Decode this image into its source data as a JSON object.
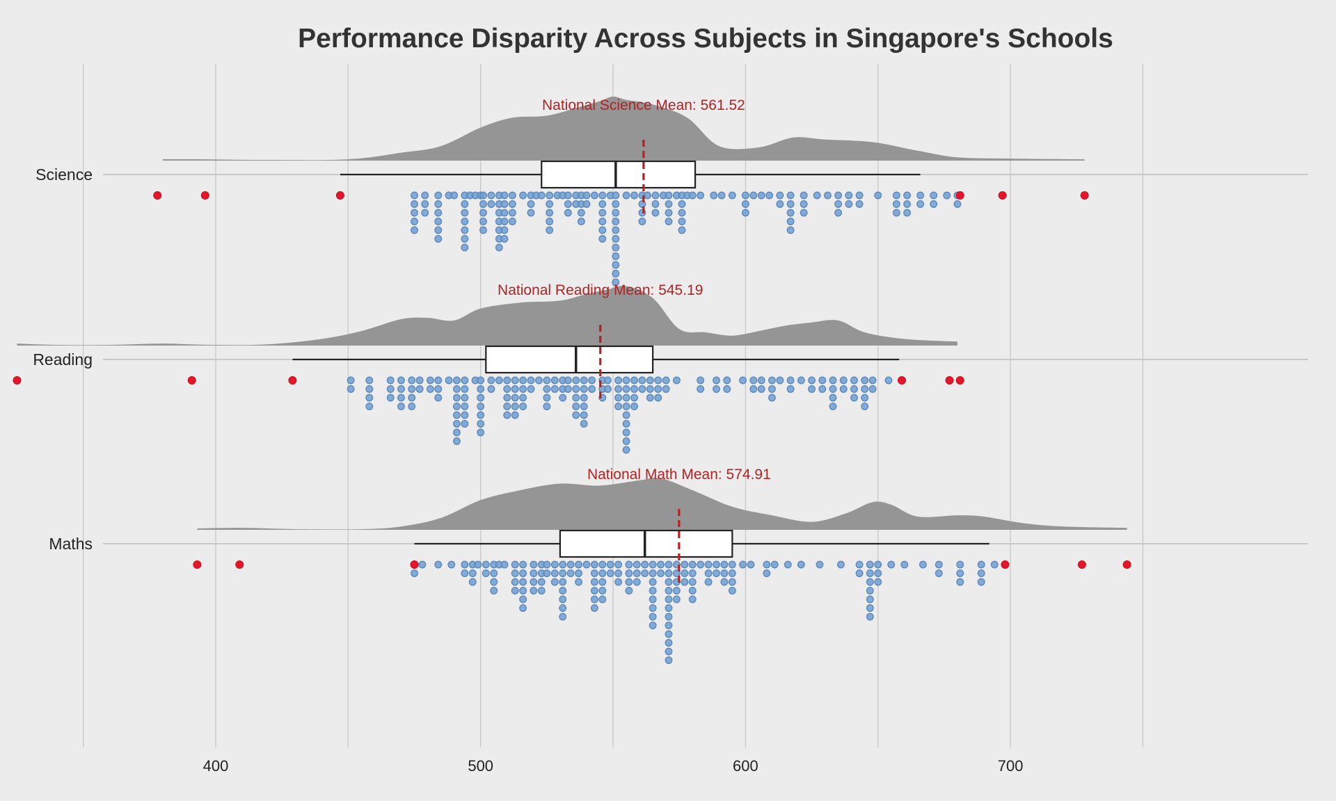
{
  "chart_data": {
    "type": "raincloud",
    "title": "Performance Disparity Across Subjects in Singapore's Schools",
    "xlabel": "",
    "ylabel": "",
    "xlim": [
      320,
      775
    ],
    "x_ticks": [
      400,
      500,
      600,
      700
    ],
    "x_gridlines": [
      350,
      400,
      450,
      500,
      550,
      600,
      650,
      700,
      750
    ],
    "grid": true,
    "categories": [
      "Science",
      "Reading",
      "Maths"
    ],
    "colors": {
      "background": "#ececed",
      "grid": "#c8c8c8",
      "density": "#959595",
      "point": "#6f9fd2",
      "point_edge": "#5b86b8",
      "outlier": "#e3162c",
      "mean_line": "#b22222",
      "box_fill": "#ffffff",
      "box_edge": "#222222"
    },
    "series": [
      {
        "name": "Science",
        "mean": 561.52,
        "mean_label": "National Science Mean: 561.52",
        "box": {
          "whisker_low": 447,
          "q1": 523,
          "median": 551,
          "q3": 581,
          "whisker_high": 666
        },
        "density_range": [
          378,
          728
        ],
        "density_peaks": [
          [
            380,
            0.02
          ],
          [
            395,
            0.02
          ],
          [
            420,
            0.01
          ],
          [
            450,
            0.02
          ],
          [
            470,
            0.12
          ],
          [
            485,
            0.22
          ],
          [
            500,
            0.5
          ],
          [
            512,
            0.65
          ],
          [
            525,
            0.68
          ],
          [
            538,
            0.82
          ],
          [
            545,
            0.9
          ],
          [
            550,
            0.97
          ],
          [
            555,
            0.92
          ],
          [
            565,
            0.85
          ],
          [
            578,
            0.65
          ],
          [
            590,
            0.22
          ],
          [
            605,
            0.2
          ],
          [
            618,
            0.35
          ],
          [
            630,
            0.32
          ],
          [
            648,
            0.28
          ],
          [
            665,
            0.15
          ],
          [
            680,
            0.05
          ],
          [
            700,
            0.03
          ],
          [
            728,
            0.02
          ]
        ],
        "outliers": [
          378,
          396,
          447,
          681,
          697,
          728
        ],
        "points": [
          [
            475,
            5
          ],
          [
            479,
            3
          ],
          [
            484,
            6
          ],
          [
            488,
            1
          ],
          [
            490,
            1
          ],
          [
            494,
            7
          ],
          [
            496,
            1
          ],
          [
            498,
            1
          ],
          [
            500,
            1
          ],
          [
            501,
            5
          ],
          [
            504,
            2
          ],
          [
            507,
            7
          ],
          [
            509,
            6
          ],
          [
            512,
            4
          ],
          [
            516,
            1
          ],
          [
            519,
            3
          ],
          [
            521,
            1
          ],
          [
            523,
            1
          ],
          [
            526,
            5
          ],
          [
            529,
            1
          ],
          [
            531,
            1
          ],
          [
            533,
            3
          ],
          [
            536,
            2
          ],
          [
            538,
            4
          ],
          [
            540,
            2
          ],
          [
            543,
            1
          ],
          [
            546,
            6
          ],
          [
            549,
            1
          ],
          [
            551,
            13
          ],
          [
            555,
            1
          ],
          [
            558,
            1
          ],
          [
            561,
            4
          ],
          [
            563,
            1
          ],
          [
            566,
            3
          ],
          [
            569,
            1
          ],
          [
            571,
            4
          ],
          [
            574,
            1
          ],
          [
            576,
            5
          ],
          [
            578,
            1
          ],
          [
            580,
            1
          ],
          [
            583,
            1
          ],
          [
            588,
            1
          ],
          [
            591,
            1
          ],
          [
            595,
            1
          ],
          [
            600,
            3
          ],
          [
            603,
            1
          ],
          [
            606,
            1
          ],
          [
            609,
            1
          ],
          [
            613,
            2
          ],
          [
            617,
            5
          ],
          [
            622,
            3
          ],
          [
            627,
            1
          ],
          [
            631,
            1
          ],
          [
            635,
            3
          ],
          [
            639,
            2
          ],
          [
            643,
            2
          ],
          [
            650,
            1
          ],
          [
            657,
            3
          ],
          [
            661,
            3
          ],
          [
            666,
            2
          ],
          [
            671,
            2
          ],
          [
            676,
            1
          ],
          [
            680,
            2
          ]
        ]
      },
      {
        "name": "Reading",
        "mean": 545.19,
        "mean_label": "National Reading Mean: 545.19",
        "box": {
          "whisker_low": 429,
          "q1": 502,
          "median": 536,
          "q3": 565,
          "whisker_high": 658
        },
        "density_range": [
          325,
          680
        ],
        "density_peaks": [
          [
            325,
            0.03
          ],
          [
            340,
            0.01
          ],
          [
            360,
            0.01
          ],
          [
            380,
            0.03
          ],
          [
            400,
            0.01
          ],
          [
            420,
            0.02
          ],
          [
            440,
            0.1
          ],
          [
            455,
            0.22
          ],
          [
            470,
            0.4
          ],
          [
            480,
            0.42
          ],
          [
            490,
            0.38
          ],
          [
            500,
            0.56
          ],
          [
            515,
            0.65
          ],
          [
            530,
            0.68
          ],
          [
            540,
            0.78
          ],
          [
            548,
            0.85
          ],
          [
            555,
            0.9
          ],
          [
            565,
            0.72
          ],
          [
            575,
            0.25
          ],
          [
            585,
            0.2
          ],
          [
            595,
            0.15
          ],
          [
            605,
            0.22
          ],
          [
            615,
            0.3
          ],
          [
            625,
            0.35
          ],
          [
            635,
            0.38
          ],
          [
            645,
            0.2
          ],
          [
            660,
            0.1
          ],
          [
            680,
            0.06
          ]
        ],
        "outliers": [
          325,
          391,
          429,
          659,
          677,
          681
        ],
        "points": [
          [
            451,
            2
          ],
          [
            458,
            4
          ],
          [
            466,
            3
          ],
          [
            470,
            4
          ],
          [
            474,
            4
          ],
          [
            477,
            2
          ],
          [
            481,
            2
          ],
          [
            484,
            3
          ],
          [
            488,
            1
          ],
          [
            491,
            8
          ],
          [
            494,
            6
          ],
          [
            498,
            1
          ],
          [
            500,
            7
          ],
          [
            504,
            2
          ],
          [
            507,
            1
          ],
          [
            510,
            5
          ],
          [
            513,
            5
          ],
          [
            516,
            4
          ],
          [
            519,
            2
          ],
          [
            522,
            1
          ],
          [
            525,
            4
          ],
          [
            528,
            2
          ],
          [
            531,
            3
          ],
          [
            533,
            2
          ],
          [
            536,
            5
          ],
          [
            539,
            6
          ],
          [
            542,
            2
          ],
          [
            546,
            3
          ],
          [
            548,
            2
          ],
          [
            552,
            4
          ],
          [
            555,
            9
          ],
          [
            558,
            4
          ],
          [
            561,
            2
          ],
          [
            564,
            3
          ],
          [
            567,
            3
          ],
          [
            570,
            2
          ],
          [
            574,
            1
          ],
          [
            583,
            2
          ],
          [
            589,
            2
          ],
          [
            593,
            2
          ],
          [
            599,
            1
          ],
          [
            603,
            2
          ],
          [
            606,
            2
          ],
          [
            610,
            3
          ],
          [
            613,
            1
          ],
          [
            617,
            2
          ],
          [
            621,
            1
          ],
          [
            625,
            2
          ],
          [
            629,
            2
          ],
          [
            633,
            4
          ],
          [
            637,
            2
          ],
          [
            641,
            3
          ],
          [
            645,
            4
          ],
          [
            648,
            2
          ],
          [
            654,
            1
          ]
        ]
      },
      {
        "name": "Maths",
        "mean": 574.91,
        "mean_label": "National Math Mean: 574.91",
        "box": {
          "whisker_low": 475,
          "q1": 530,
          "median": 562,
          "q3": 595,
          "whisker_high": 692
        },
        "density_range": [
          393,
          744
        ],
        "density_peaks": [
          [
            393,
            0.02
          ],
          [
            410,
            0.03
          ],
          [
            430,
            0.01
          ],
          [
            455,
            0.01
          ],
          [
            470,
            0.05
          ],
          [
            485,
            0.18
          ],
          [
            500,
            0.45
          ],
          [
            515,
            0.6
          ],
          [
            530,
            0.7
          ],
          [
            545,
            0.67
          ],
          [
            560,
            0.75
          ],
          [
            568,
            0.78
          ],
          [
            580,
            0.6
          ],
          [
            595,
            0.35
          ],
          [
            610,
            0.22
          ],
          [
            625,
            0.12
          ],
          [
            638,
            0.25
          ],
          [
            648,
            0.42
          ],
          [
            655,
            0.38
          ],
          [
            665,
            0.2
          ],
          [
            680,
            0.22
          ],
          [
            690,
            0.2
          ],
          [
            705,
            0.1
          ],
          [
            720,
            0.05
          ],
          [
            744,
            0.03
          ]
        ],
        "outliers": [
          393,
          409,
          475,
          698,
          727,
          744
        ],
        "points": [
          [
            475,
            2
          ],
          [
            478,
            1
          ],
          [
            484,
            1
          ],
          [
            489,
            1
          ],
          [
            494,
            2
          ],
          [
            497,
            3
          ],
          [
            499,
            1
          ],
          [
            502,
            2
          ],
          [
            505,
            4
          ],
          [
            507,
            1
          ],
          [
            509,
            1
          ],
          [
            513,
            4
          ],
          [
            516,
            6
          ],
          [
            520,
            4
          ],
          [
            523,
            4
          ],
          [
            525,
            2
          ],
          [
            528,
            3
          ],
          [
            531,
            7
          ],
          [
            534,
            2
          ],
          [
            537,
            3
          ],
          [
            540,
            1
          ],
          [
            543,
            6
          ],
          [
            546,
            5
          ],
          [
            549,
            2
          ],
          [
            552,
            3
          ],
          [
            556,
            4
          ],
          [
            559,
            3
          ],
          [
            562,
            2
          ],
          [
            565,
            8
          ],
          [
            568,
            2
          ],
          [
            571,
            12
          ],
          [
            574,
            5
          ],
          [
            577,
            3
          ],
          [
            580,
            5
          ],
          [
            583,
            1
          ],
          [
            586,
            3
          ],
          [
            589,
            2
          ],
          [
            592,
            3
          ],
          [
            595,
            4
          ],
          [
            599,
            1
          ],
          [
            602,
            1
          ],
          [
            608,
            2
          ],
          [
            611,
            1
          ],
          [
            616,
            1
          ],
          [
            621,
            1
          ],
          [
            628,
            1
          ],
          [
            636,
            1
          ],
          [
            643,
            2
          ],
          [
            647,
            7
          ],
          [
            650,
            3
          ],
          [
            655,
            1
          ],
          [
            660,
            1
          ],
          [
            667,
            1
          ],
          [
            673,
            2
          ],
          [
            681,
            3
          ],
          [
            689,
            3
          ],
          [
            694,
            1
          ]
        ]
      }
    ]
  }
}
